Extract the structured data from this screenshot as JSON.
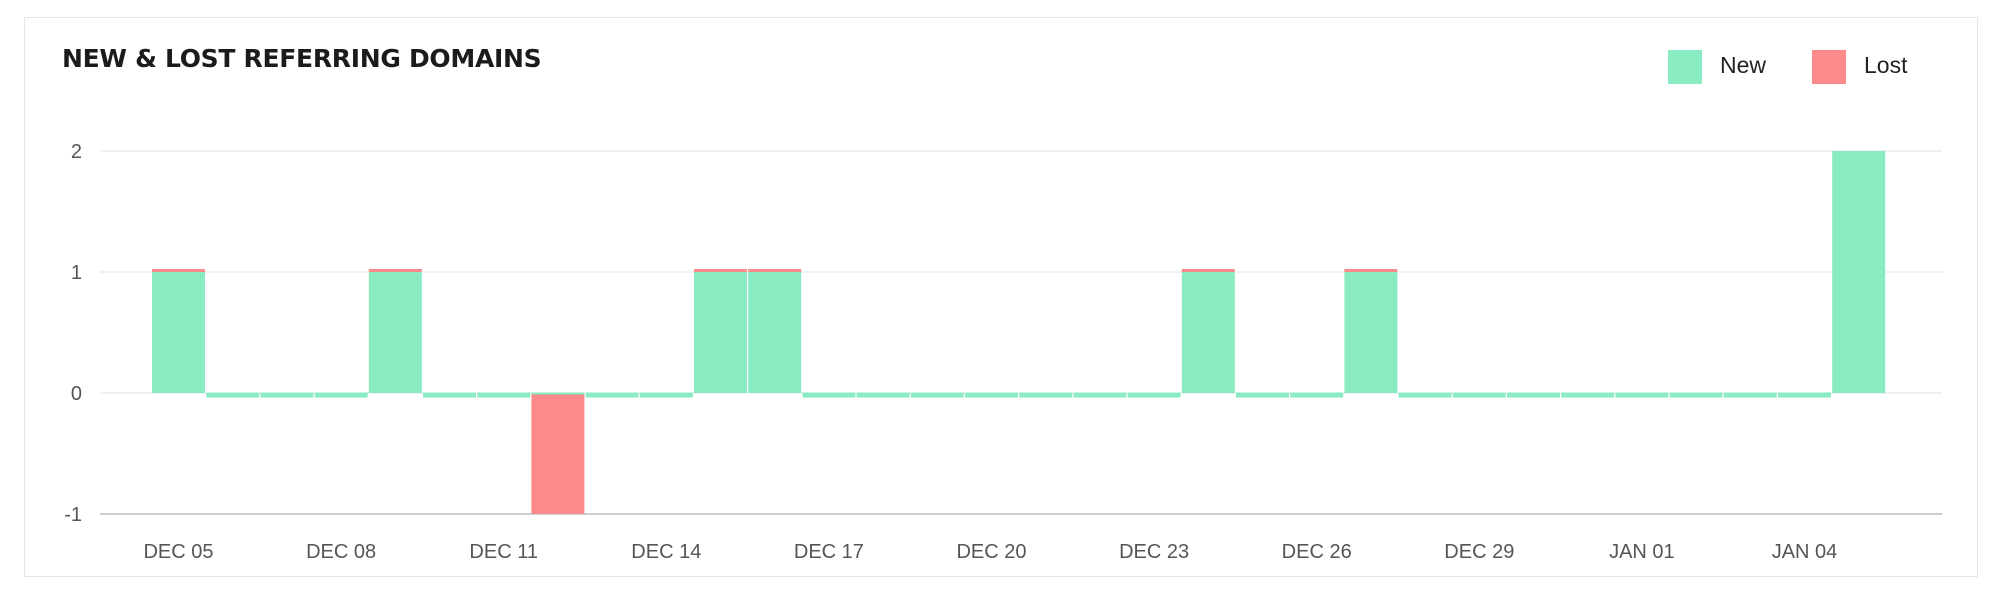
{
  "chart_data": {
    "type": "bar",
    "title": "NEW & LOST REFERRING DOMAINS",
    "xlabel": "",
    "ylabel": "",
    "ylim": [
      -1,
      2
    ],
    "yticks": [
      "2",
      "1",
      "0",
      "-1"
    ],
    "xticks": [
      "DEC 05",
      "DEC 08",
      "DEC 11",
      "DEC 14",
      "DEC 17",
      "DEC 20",
      "DEC 23",
      "DEC 26",
      "DEC 29",
      "JAN 01",
      "JAN 04"
    ],
    "categories": [
      "Dec 05",
      "Dec 06",
      "Dec 07",
      "Dec 08",
      "Dec 09",
      "Dec 10",
      "Dec 11",
      "Dec 12",
      "Dec 13",
      "Dec 14",
      "Dec 15",
      "Dec 16",
      "Dec 17",
      "Dec 18",
      "Dec 19",
      "Dec 20",
      "Dec 21",
      "Dec 22",
      "Dec 23",
      "Dec 24",
      "Dec 25",
      "Dec 26",
      "Dec 27",
      "Dec 28",
      "Dec 29",
      "Dec 30",
      "Dec 31",
      "Jan 01",
      "Jan 02",
      "Jan 03",
      "Jan 04",
      "Jan 05"
    ],
    "series": [
      {
        "name": "New",
        "color": "#88ebc2",
        "values": [
          1,
          0,
          0,
          0,
          1,
          0,
          0,
          0,
          0,
          0,
          1,
          1,
          0,
          0,
          0,
          0,
          0,
          0,
          0,
          1,
          0,
          0,
          1,
          0,
          0,
          0,
          0,
          0,
          0,
          0,
          0,
          2
        ]
      },
      {
        "name": "Lost",
        "color": "#fc8a8a",
        "values": [
          0,
          0,
          0,
          0,
          0,
          0,
          0,
          -1,
          0,
          0,
          0,
          0,
          0,
          0,
          0,
          0,
          0,
          0,
          0,
          0,
          0,
          0,
          0,
          0,
          0,
          0,
          0,
          0,
          0,
          0,
          0,
          0
        ]
      }
    ],
    "grid": true,
    "legend_position": "top-right"
  }
}
